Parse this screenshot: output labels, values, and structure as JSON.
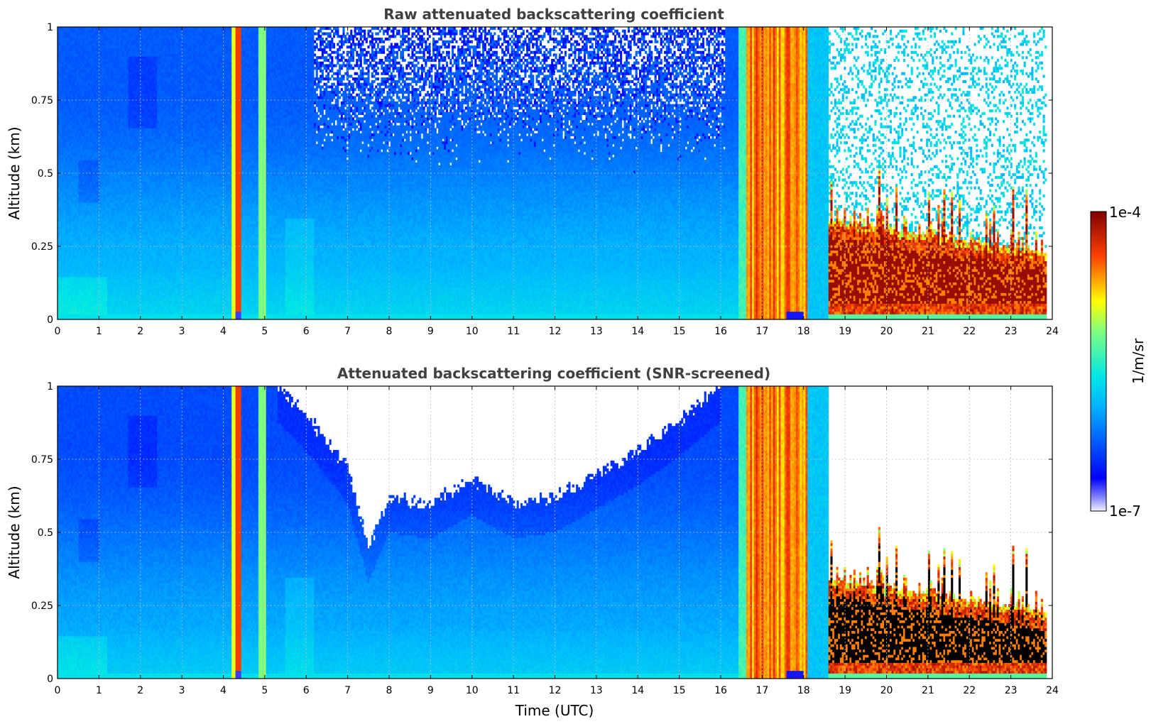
{
  "chart_data": [
    {
      "type": "heatmap",
      "title": "Raw attenuated backscattering coefficient",
      "xlabel": "",
      "ylabel": "Altitude (km)",
      "xlim": [
        0,
        24
      ],
      "ylim": [
        0,
        1
      ],
      "x_ticks": [
        "0",
        "1",
        "2",
        "3",
        "4",
        "5",
        "6",
        "7",
        "8",
        "9",
        "10",
        "11",
        "12",
        "13",
        "14",
        "15",
        "16",
        "17",
        "18",
        "19",
        "20",
        "21",
        "22",
        "23",
        "24"
      ],
      "y_ticks": [
        "0",
        "0.25",
        "0.5",
        "0.75",
        "1"
      ],
      "grid": true,
      "value_scale": "log",
      "colormap": "jet",
      "value_range": [
        "1e-7",
        "1e-4"
      ],
      "screened": false,
      "data_end_hour": 23.85,
      "features": [
        {
          "kind": "surface layer",
          "hours": [
            0,
            16.4
          ],
          "altitude_km": [
            0,
            0.25
          ],
          "level": 0.4
        },
        {
          "kind": "narrow strong column",
          "hours": [
            4.2,
            4.45
          ],
          "level": 0.85
        },
        {
          "kind": "narrow column",
          "hours": [
            4.85,
            5.05
          ],
          "level": 0.6
        },
        {
          "kind": "cloud / fog block",
          "hours": [
            16.6,
            18.0
          ],
          "level": 0.85
        },
        {
          "kind": "saturated low cloud",
          "hours": [
            18.6,
            23.85
          ],
          "altitude_km": [
            0,
            0.3
          ],
          "level": 1.0
        },
        {
          "kind": "noisy upper region",
          "hours": [
            6.5,
            16.0
          ],
          "altitude_km": [
            0.55,
            1.0
          ],
          "level": 0.12
        }
      ]
    },
    {
      "type": "heatmap",
      "title": "Attenuated backscattering coefficient (SNR-screened)",
      "xlabel": "Time (UTC)",
      "ylabel": "Altitude (km)",
      "xlim": [
        0,
        24
      ],
      "ylim": [
        0,
        1
      ],
      "x_ticks": [
        "0",
        "1",
        "2",
        "3",
        "4",
        "5",
        "6",
        "7",
        "8",
        "9",
        "10",
        "11",
        "12",
        "13",
        "14",
        "15",
        "16",
        "17",
        "18",
        "19",
        "20",
        "21",
        "22",
        "23",
        "24"
      ],
      "y_ticks": [
        "0",
        "0.25",
        "0.5",
        "0.75",
        "1"
      ],
      "grid": true,
      "value_scale": "log",
      "colormap": "jet",
      "value_range": [
        "1e-7",
        "1e-4"
      ],
      "screened": true,
      "screened_out_color": "#ffffff",
      "over_range_color": "#000000",
      "data_end_hour": 23.85,
      "screened_boundary": [
        {
          "hour": 5.3,
          "altitude_km": 1.0
        },
        {
          "hour": 6.0,
          "altitude_km": 0.9
        },
        {
          "hour": 7.0,
          "altitude_km": 0.72
        },
        {
          "hour": 7.5,
          "altitude_km": 0.45
        },
        {
          "hour": 8.0,
          "altitude_km": 0.62
        },
        {
          "hour": 9.0,
          "altitude_km": 0.6
        },
        {
          "hour": 10.0,
          "altitude_km": 0.68
        },
        {
          "hour": 11.0,
          "altitude_km": 0.6
        },
        {
          "hour": 12.0,
          "altitude_km": 0.62
        },
        {
          "hour": 13.0,
          "altitude_km": 0.7
        },
        {
          "hour": 14.0,
          "altitude_km": 0.78
        },
        {
          "hour": 15.0,
          "altitude_km": 0.88
        },
        {
          "hour": 16.0,
          "altitude_km": 1.0
        }
      ]
    }
  ],
  "colorbar": {
    "label": "1/m/sr",
    "max_label": "1e-4",
    "min_label": "1e-7"
  }
}
